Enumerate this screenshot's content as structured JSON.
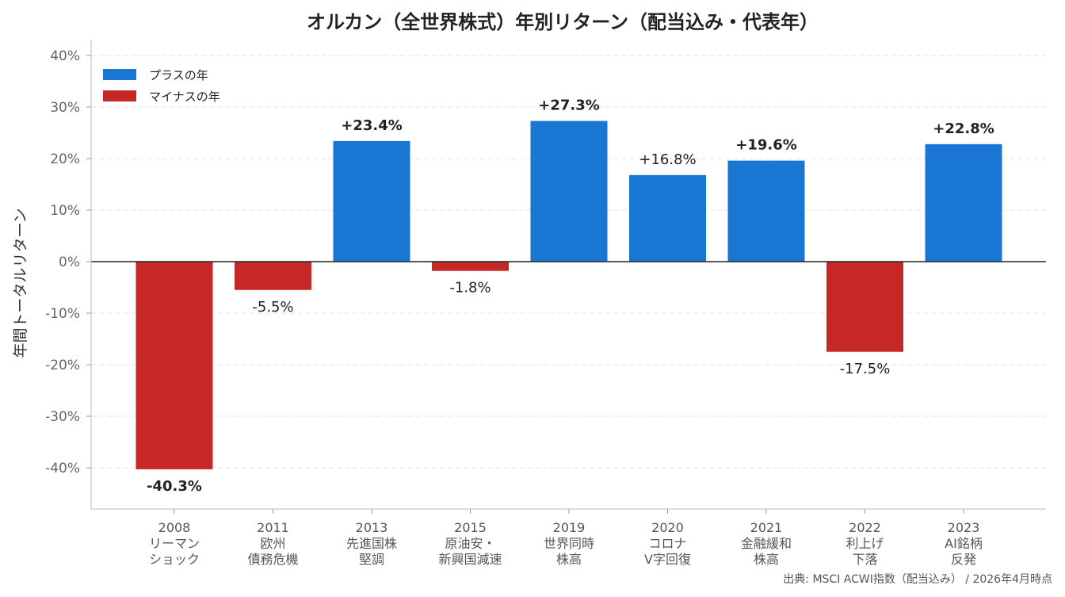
{
  "chart_data": {
    "type": "bar",
    "title": "オルカン（全世界株式）年別リターン（配当込み・代表年）",
    "ylabel": "年間トータルリターン",
    "xlabel": "",
    "source": "出典: MSCI ACWI指数（配当込み） / 2026年4月時点",
    "categories": [
      [
        "2008",
        "リーマン",
        "ショック"
      ],
      [
        "2011",
        "欧州",
        "債務危機"
      ],
      [
        "2013",
        "先進国株",
        "堅調"
      ],
      [
        "2015",
        "原油安・",
        "新興国減速"
      ],
      [
        "2019",
        "世界同時",
        "株高"
      ],
      [
        "2020",
        "コロナ",
        "V字回復"
      ],
      [
        "2021",
        "金融緩和",
        "株高"
      ],
      [
        "2022",
        "利上げ",
        "下落"
      ],
      [
        "2023",
        "AI銘柄",
        "反発"
      ]
    ],
    "values": [
      -40.3,
      -5.5,
      23.4,
      -1.8,
      27.3,
      16.8,
      19.6,
      -17.5,
      22.8
    ],
    "data_labels": [
      "-40.3%",
      "-5.5%",
      "+23.4%",
      "-1.8%",
      "+27.3%",
      "+16.8%",
      "+19.6%",
      "-17.5%",
      "+22.8%"
    ],
    "bold_labels": [
      true,
      false,
      true,
      false,
      true,
      false,
      true,
      false,
      true
    ],
    "yticks": [
      -40,
      -30,
      -20,
      -10,
      0,
      10,
      20,
      30,
      40
    ],
    "ytick_labels": [
      "-40%",
      "-30%",
      "-20%",
      "-10%",
      "0%",
      "10%",
      "20%",
      "30%",
      "40%"
    ],
    "ylim": [
      -48,
      43
    ],
    "grid": "horizontal dashed",
    "legend": {
      "placement": "top-left",
      "entries": [
        {
          "label": "プラスの年",
          "color": "#1976D2"
        },
        {
          "label": "マイナスの年",
          "color": "#C62828"
        }
      ]
    },
    "colors": {
      "positive": "#1976D2",
      "negative": "#C62828"
    }
  }
}
